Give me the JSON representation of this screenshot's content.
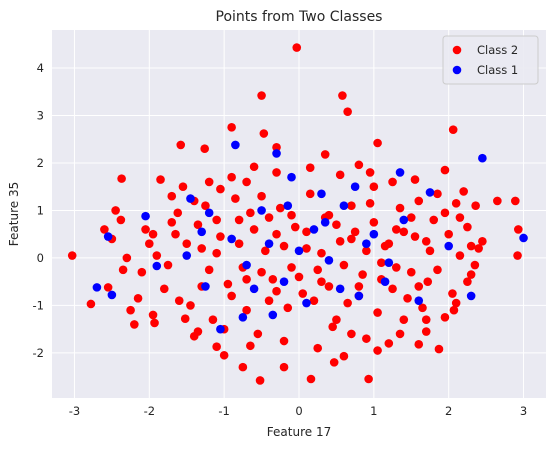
{
  "chart_data": {
    "type": "scatter",
    "title": "Points from Two Classes",
    "xlabel": "Feature 17",
    "ylabel": "Feature 35",
    "xlim": [
      -3.3,
      3.3
    ],
    "ylim": [
      -2.95,
      4.8
    ],
    "xticks": [
      -3,
      -2,
      -1,
      0,
      1,
      2,
      3
    ],
    "yticks": [
      -2,
      -1,
      0,
      1,
      2,
      3,
      4
    ],
    "grid": true,
    "background": "#eaeaf2",
    "legend_position": "top-right",
    "series": [
      {
        "name": "Class 2",
        "color": "#ff0000",
        "points": [
          [
            -0.03,
            4.43
          ],
          [
            -0.5,
            3.42
          ],
          [
            0.58,
            3.42
          ],
          [
            0.65,
            3.08
          ],
          [
            -0.9,
            2.75
          ],
          [
            2.06,
            2.7
          ],
          [
            -0.47,
            2.62
          ],
          [
            1.05,
            2.42
          ],
          [
            -1.58,
            2.38
          ],
          [
            -2.37,
            1.67
          ],
          [
            2.65,
            1.2
          ],
          [
            2.89,
            1.2
          ],
          [
            -3.03,
            0.05
          ],
          [
            2.92,
            0.05
          ],
          [
            2.93,
            0.6
          ],
          [
            -2.78,
            -0.97
          ],
          [
            2.3,
            0.25
          ],
          [
            -2.55,
            -0.62
          ],
          [
            -2.25,
            -1.1
          ],
          [
            2.07,
            -1.1
          ],
          [
            -0.52,
            -2.58
          ],
          [
            0.16,
            -2.55
          ],
          [
            0.93,
            -2.55
          ],
          [
            -1.93,
            -1.37
          ],
          [
            1.87,
            -1.92
          ],
          [
            -1.4,
            -1.65
          ],
          [
            1.6,
            -1.82
          ],
          [
            -0.75,
            -2.3
          ],
          [
            0.47,
            -2.2
          ],
          [
            -1.1,
            -1.87
          ],
          [
            -1.52,
            -1.28
          ],
          [
            1.35,
            -1.6
          ],
          [
            -0.3,
            2.33
          ],
          [
            0.35,
            2.18
          ],
          [
            -1.26,
            2.3
          ],
          [
            1.55,
            1.65
          ],
          [
            -1.85,
            1.65
          ],
          [
            1.95,
            1.85
          ],
          [
            -2.0,
            0.3
          ],
          [
            2.25,
            -0.5
          ],
          [
            -1.8,
            -0.65
          ],
          [
            1.8,
            0.8
          ],
          [
            -1.2,
            1.6
          ],
          [
            1.2,
            -1.8
          ],
          [
            -0.6,
            1.92
          ],
          [
            0.8,
            1.96
          ],
          [
            -0.2,
            -2.3
          ],
          [
            0.6,
            -2.07
          ],
          [
            -2.38,
            0.8
          ],
          [
            2.36,
            1.1
          ],
          [
            -1.62,
            0.95
          ],
          [
            1.72,
            -0.5
          ],
          [
            -2.1,
            -0.3
          ],
          [
            2.0,
            0.5
          ],
          [
            -1.0,
            -1.5
          ],
          [
            1.0,
            1.5
          ],
          [
            -1.5,
            0.3
          ],
          [
            1.5,
            -0.3
          ],
          [
            -0.5,
            1.3
          ],
          [
            0.5,
            -1.3
          ],
          [
            -0.8,
            0.8
          ],
          [
            0.8,
            -0.8
          ],
          [
            -0.3,
            0.5
          ],
          [
            0.3,
            -0.5
          ],
          [
            0.1,
            0.2
          ],
          [
            -0.1,
            -0.2
          ],
          [
            -1.3,
            -0.6
          ],
          [
            1.3,
            0.6
          ],
          [
            -0.7,
            -1.1
          ],
          [
            0.7,
            1.1
          ],
          [
            -2.2,
            -1.4
          ],
          [
            2.2,
            1.4
          ],
          [
            -1.7,
            1.3
          ],
          [
            1.7,
            -1.3
          ],
          [
            -0.9,
            1.7
          ],
          [
            0.9,
            -1.7
          ],
          [
            -1.1,
            0.1
          ],
          [
            1.1,
            -0.1
          ],
          [
            -0.4,
            -0.9
          ],
          [
            0.4,
            0.9
          ],
          [
            -2.45,
            1.0
          ],
          [
            -2.5,
            0.4
          ],
          [
            -2.3,
            0.0
          ],
          [
            -2.15,
            -0.85
          ],
          [
            -1.95,
            -1.2
          ],
          [
            -2.05,
            0.6
          ],
          [
            -1.75,
            -0.15
          ],
          [
            -1.65,
            0.5
          ],
          [
            -1.6,
            -0.9
          ],
          [
            -1.45,
            -1.0
          ],
          [
            -1.35,
            0.7
          ],
          [
            -1.25,
            1.1
          ],
          [
            -1.15,
            -1.3
          ],
          [
            -1.05,
            0.45
          ],
          [
            -0.95,
            -0.55
          ],
          [
            -0.85,
            1.25
          ],
          [
            -0.75,
            -0.2
          ],
          [
            -0.65,
            0.95
          ],
          [
            -0.55,
            -1.6
          ],
          [
            -0.45,
            0.15
          ],
          [
            -0.35,
            -0.45
          ],
          [
            -0.25,
            1.05
          ],
          [
            -0.15,
            -1.05
          ],
          [
            -0.05,
            0.65
          ],
          [
            0.05,
            -0.75
          ],
          [
            0.15,
            1.35
          ],
          [
            0.25,
            -0.25
          ],
          [
            0.35,
            0.85
          ],
          [
            0.45,
            -1.45
          ],
          [
            0.55,
            0.35
          ],
          [
            0.65,
            -0.95
          ],
          [
            0.75,
            0.55
          ],
          [
            0.85,
            -0.35
          ],
          [
            0.95,
            1.15
          ],
          [
            1.05,
            -1.15
          ],
          [
            1.15,
            0.25
          ],
          [
            1.25,
            -0.65
          ],
          [
            1.35,
            1.05
          ],
          [
            1.45,
            -0.85
          ],
          [
            1.55,
            0.45
          ],
          [
            1.65,
            -1.05
          ],
          [
            1.75,
            0.15
          ],
          [
            1.85,
            -0.25
          ],
          [
            1.95,
            0.95
          ],
          [
            2.05,
            -0.75
          ],
          [
            2.15,
            0.05
          ],
          [
            2.25,
            0.65
          ],
          [
            2.35,
            -0.15
          ],
          [
            2.45,
            0.35
          ],
          [
            2.1,
            1.15
          ],
          [
            -1.9,
            0.05
          ],
          [
            -2.35,
            -0.25
          ],
          [
            -2.6,
            0.6
          ],
          [
            -1.55,
            1.5
          ],
          [
            -1.35,
            -1.55
          ],
          [
            -1.0,
            -2.05
          ],
          [
            -0.65,
            -1.85
          ],
          [
            -0.2,
            -1.75
          ],
          [
            0.25,
            -1.9
          ],
          [
            0.7,
            -1.6
          ],
          [
            1.05,
            -1.95
          ],
          [
            1.4,
            -1.3
          ],
          [
            1.7,
            -1.55
          ],
          [
            1.95,
            -1.25
          ],
          [
            2.1,
            -0.95
          ],
          [
            2.3,
            -0.35
          ],
          [
            2.4,
            0.2
          ],
          [
            2.15,
            0.85
          ],
          [
            1.85,
            1.35
          ],
          [
            1.6,
            1.2
          ],
          [
            1.25,
            1.6
          ],
          [
            0.95,
            1.8
          ],
          [
            0.55,
            1.75
          ],
          [
            0.15,
            1.9
          ],
          [
            -0.3,
            1.8
          ],
          [
            -0.7,
            1.6
          ],
          [
            -1.05,
            1.45
          ],
          [
            -1.4,
            1.2
          ],
          [
            -1.7,
            0.75
          ],
          [
            -1.95,
            0.5
          ],
          [
            -1.3,
            0.2
          ],
          [
            -1.2,
            -0.25
          ],
          [
            -1.1,
            0.8
          ],
          [
            -0.9,
            -0.8
          ],
          [
            -0.8,
            0.3
          ],
          [
            -0.7,
            -0.45
          ],
          [
            -0.6,
            0.6
          ],
          [
            -0.5,
            -0.3
          ],
          [
            -0.4,
            0.85
          ],
          [
            -0.3,
            -0.7
          ],
          [
            -0.2,
            0.25
          ],
          [
            -0.1,
            0.9
          ],
          [
            0.0,
            -0.4
          ],
          [
            0.1,
            0.55
          ],
          [
            0.2,
            -0.9
          ],
          [
            0.3,
            0.1
          ],
          [
            0.4,
            -0.6
          ],
          [
            0.5,
            0.7
          ],
          [
            0.6,
            -0.15
          ],
          [
            0.7,
            0.4
          ],
          [
            0.8,
            -0.6
          ],
          [
            0.9,
            0.15
          ],
          [
            1.0,
            0.75
          ],
          [
            1.1,
            -0.45
          ],
          [
            1.2,
            0.3
          ],
          [
            1.3,
            -0.2
          ],
          [
            1.4,
            0.55
          ],
          [
            1.5,
            0.85
          ],
          [
            1.6,
            -0.6
          ],
          [
            1.7,
            0.35
          ]
        ]
      },
      {
        "name": "Class 1",
        "color": "#0000ff",
        "points": [
          [
            2.45,
            2.1
          ],
          [
            3.0,
            0.42
          ],
          [
            2.3,
            -0.8
          ],
          [
            1.35,
            1.8
          ],
          [
            -0.85,
            2.38
          ],
          [
            -2.55,
            0.45
          ],
          [
            -2.5,
            -0.78
          ],
          [
            -2.7,
            -0.62
          ],
          [
            -2.05,
            0.88
          ],
          [
            -1.9,
            -0.17
          ],
          [
            -1.45,
            1.25
          ],
          [
            -1.2,
            0.95
          ],
          [
            -0.5,
            1.0
          ],
          [
            -0.3,
            2.2
          ],
          [
            -0.1,
            1.7
          ],
          [
            0.2,
            0.6
          ],
          [
            0.3,
            1.35
          ],
          [
            0.4,
            -0.05
          ],
          [
            0.6,
            1.1
          ],
          [
            0.8,
            -0.8
          ],
          [
            1.0,
            0.5
          ],
          [
            1.2,
            -0.1
          ],
          [
            1.4,
            0.8
          ],
          [
            1.75,
            1.38
          ],
          [
            2.0,
            0.25
          ],
          [
            1.6,
            -0.9
          ],
          [
            0.75,
            1.5
          ],
          [
            -0.6,
            -0.65
          ],
          [
            -0.75,
            -1.25
          ],
          [
            -1.05,
            -1.5
          ],
          [
            -1.25,
            -0.6
          ],
          [
            -1.5,
            0.05
          ],
          [
            -0.9,
            0.4
          ],
          [
            -0.35,
            -1.2
          ],
          [
            0.1,
            -0.95
          ],
          [
            0.55,
            -0.65
          ],
          [
            -0.2,
            -0.5
          ],
          [
            0.0,
            0.15
          ],
          [
            -0.4,
            0.3
          ],
          [
            0.35,
            0.75
          ],
          [
            -0.7,
            -0.15
          ],
          [
            1.15,
            -0.5
          ],
          [
            -0.15,
            1.1
          ],
          [
            0.9,
            0.3
          ],
          [
            -1.3,
            0.55
          ]
        ]
      }
    ]
  }
}
